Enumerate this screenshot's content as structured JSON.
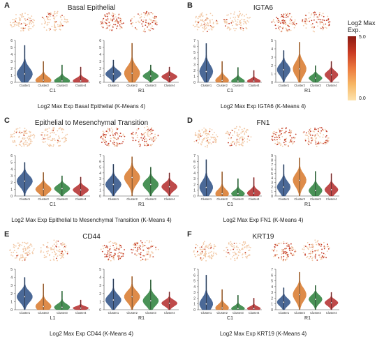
{
  "legend": {
    "title": "Log2 Max Exp.",
    "max": "5.0",
    "min": "0.0"
  },
  "colors": {
    "c1": "#2c4f85",
    "c2": "#d8782a",
    "c3": "#2a7f3a",
    "c4": "#b32a2a",
    "tsneHigh": "#c43a24",
    "tsneLow": "#f2c9a6"
  },
  "chart_data": [
    {
      "type": "violin",
      "panel": "A",
      "title": "Basal Epithelial",
      "caption": "Log2 Max Exp Basal Epithelial (K-Means 4)",
      "groups": [
        {
          "label": "C1",
          "ymax": 6,
          "categories": [
            "Cluster1",
            "Cluster2",
            "Cluster3",
            "Cluster4"
          ],
          "medians": [
            1.2,
            0.3,
            0.2,
            0.2
          ],
          "maxima": [
            5.3,
            3.0,
            2.5,
            2.2
          ]
        },
        {
          "label": "R1",
          "ymax": 6,
          "categories": [
            "Cluster1",
            "Cluster2",
            "Cluster3",
            "Cluster4"
          ],
          "medians": [
            1.2,
            1.3,
            0.9,
            0.8
          ],
          "maxima": [
            3.2,
            5.6,
            2.5,
            2.2
          ]
        }
      ]
    },
    {
      "type": "violin",
      "panel": "B",
      "title": "IGTA6",
      "caption": "Log2 Max Exp IGTA6 (K-Means 4)",
      "groups": [
        {
          "label": "C1",
          "ymax": 7,
          "categories": [
            "Cluster1",
            "Cluster2",
            "Cluster3",
            "Cluster4"
          ],
          "medians": [
            1.8,
            0.3,
            0.2,
            0.2
          ],
          "maxima": [
            6.5,
            3.5,
            2.5,
            2.0
          ]
        },
        {
          "label": "R1",
          "ymax": 5,
          "categories": [
            "Cluster1",
            "Cluster2",
            "Cluster3",
            "Cluster4"
          ],
          "medians": [
            1.5,
            1.6,
            0.5,
            0.9
          ],
          "maxima": [
            3.8,
            4.8,
            2.0,
            2.5
          ]
        }
      ]
    },
    {
      "type": "violin",
      "panel": "C",
      "title": "Epithelial to Mesenchymal Transition",
      "caption": "Log2 Max Exp Epithelial to Mesenchymal Transition (K-Means 4)",
      "groups": [
        {
          "label": "C1",
          "ymax": 6,
          "categories": [
            "Cluster1",
            "Cluster2",
            "Cluster3",
            "Cluster4"
          ],
          "medians": [
            2.2,
            1.0,
            1.1,
            0.9
          ],
          "maxima": [
            5.0,
            3.5,
            3.0,
            2.8
          ]
        },
        {
          "label": "R1",
          "ymax": 7,
          "categories": [
            "Cluster1",
            "Cluster2",
            "Cluster3",
            "Cluster4"
          ],
          "medians": [
            2.0,
            3.2,
            2.0,
            1.6
          ],
          "maxima": [
            5.5,
            6.8,
            5.0,
            4.0
          ]
        }
      ]
    },
    {
      "type": "violin",
      "panel": "D",
      "title": "FN1",
      "caption": "Log2 Max Exp FN1 (K-Means 4)",
      "groups": [
        {
          "label": "C1",
          "ymax": 7,
          "categories": [
            "Cluster1",
            "Cluster2",
            "Cluster3",
            "Cluster4"
          ],
          "medians": [
            1.5,
            0.4,
            0.4,
            0.5
          ],
          "maxima": [
            6.3,
            4.2,
            3.0,
            3.2
          ]
        },
        {
          "label": "R1",
          "ymax": 9,
          "categories": [
            "Cluster1",
            "Cluster2",
            "Cluster3",
            "Cluster4"
          ],
          "medians": [
            2.0,
            3.5,
            1.2,
            1.4
          ],
          "maxima": [
            7.0,
            8.5,
            5.5,
            5.0
          ]
        }
      ]
    },
    {
      "type": "violin",
      "panel": "E",
      "title": "CD44",
      "caption": "Log2 Max Exp CD44 (K-Means 4)",
      "groups": [
        {
          "label": "L1",
          "ymax": 5,
          "categories": [
            "Cluster1",
            "Cluster2",
            "Cluster3",
            "Cluster4"
          ],
          "medians": [
            1.6,
            0.4,
            0.3,
            0.2
          ],
          "maxima": [
            4.0,
            3.2,
            2.3,
            1.2
          ]
        },
        {
          "label": "R1",
          "ymax": 5,
          "categories": [
            "Cluster1",
            "Cluster2",
            "Cluster3",
            "Cluster4"
          ],
          "medians": [
            1.2,
            1.6,
            1.1,
            0.8
          ],
          "maxima": [
            3.8,
            4.1,
            3.7,
            2.2
          ]
        }
      ]
    },
    {
      "type": "violin",
      "panel": "F",
      "title": "KRT19",
      "caption": "Log2 Max Exp KRT19 (K-Means 4)",
      "groups": [
        {
          "label": "C1",
          "ymax": 7,
          "categories": [
            "Cluster1",
            "Cluster2",
            "Cluster3",
            "Cluster4"
          ],
          "medians": [
            1.0,
            0.3,
            0.2,
            0.2
          ],
          "maxima": [
            6.0,
            3.5,
            2.5,
            2.0
          ]
        },
        {
          "label": "R1",
          "ymax": 7,
          "categories": [
            "Cluster1",
            "Cluster2",
            "Cluster3",
            "Cluster4"
          ],
          "medians": [
            1.3,
            2.6,
            1.8,
            1.2
          ],
          "maxima": [
            3.8,
            6.5,
            4.2,
            3.0
          ]
        }
      ]
    }
  ]
}
